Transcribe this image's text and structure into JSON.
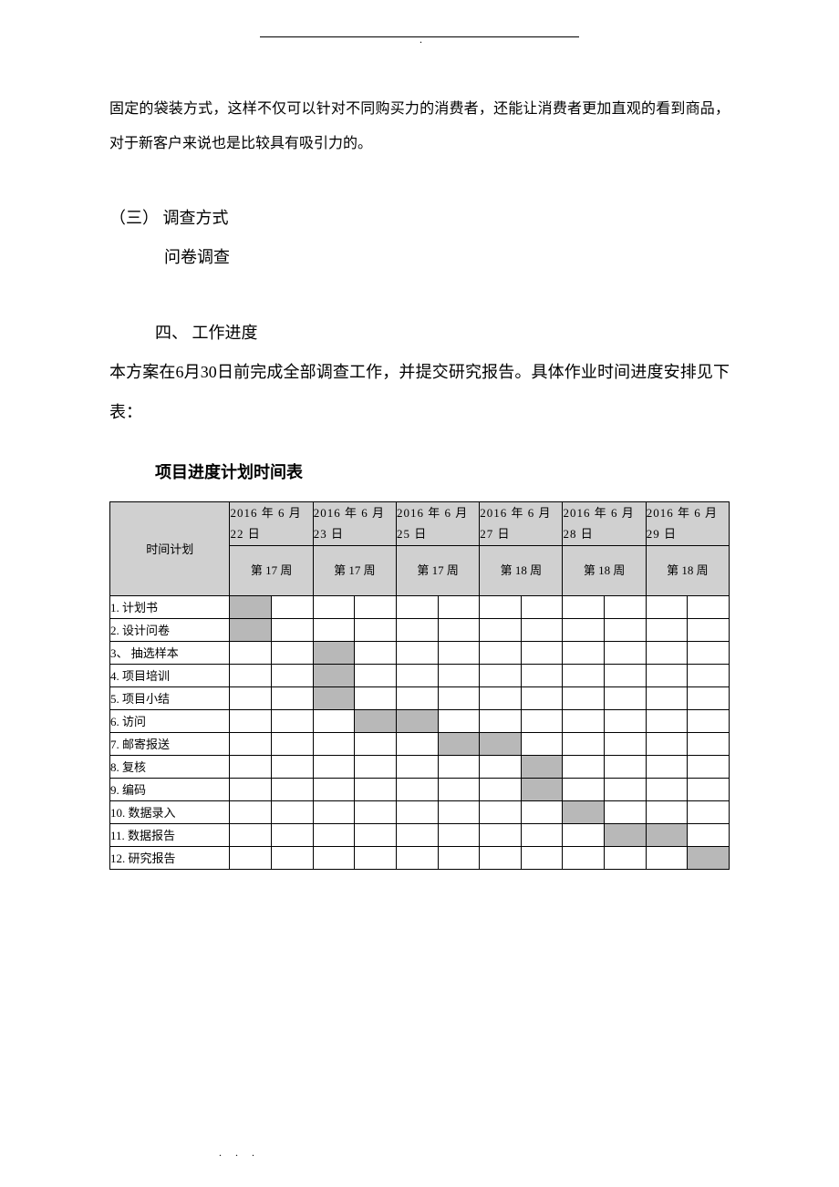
{
  "topDot": ".",
  "bodyText": "固定的袋装方式，这样不仅可以针对不同购买力的消费者，还能让消费者更加直观的看到商品，对于新客户来说也是比较具有吸引力的。",
  "sectionHead": "（三）  调查方式",
  "sectionSub": "问卷调查",
  "section4Head": "四、  工作进度",
  "section4Body": "本方案在6月30日前完成全部调查工作，并提交研究报告。具体作业时间进度安排见下表：",
  "tableTitle": "项目进度计划时间表",
  "planLabel": "时间计划",
  "dates": [
    "2016 年 6 月 22 日",
    "2016 年 6 月 23 日",
    "2016 年 6 月 25 日",
    "2016 年 6 月 27 日",
    "2016 年 6 月 28 日",
    "2016 年 6 月 29 日"
  ],
  "weeks": [
    "第 17 周",
    "第 17 周",
    "第 17 周",
    "第 18 周",
    "第 18 周",
    "第 18 周"
  ],
  "tasks": [
    {
      "label": "1.  计划书",
      "fill": [
        1,
        0,
        0,
        0,
        0,
        0,
        0,
        0,
        0,
        0,
        0,
        0
      ]
    },
    {
      "label": "2.  设计问卷",
      "fill": [
        1,
        0,
        0,
        0,
        0,
        0,
        0,
        0,
        0,
        0,
        0,
        0
      ]
    },
    {
      "label": "3、 抽选样本",
      "fill": [
        0,
        0,
        1,
        0,
        0,
        0,
        0,
        0,
        0,
        0,
        0,
        0
      ]
    },
    {
      "label": "4.  项目培训",
      "fill": [
        0,
        0,
        1,
        0,
        0,
        0,
        0,
        0,
        0,
        0,
        0,
        0
      ]
    },
    {
      "label": "5.  项目小结",
      "fill": [
        0,
        0,
        1,
        0,
        0,
        0,
        0,
        0,
        0,
        0,
        0,
        0
      ]
    },
    {
      "label": "6.  访问",
      "fill": [
        0,
        0,
        0,
        1,
        1,
        0,
        0,
        0,
        0,
        0,
        0,
        0
      ]
    },
    {
      "label": "7.  邮寄报送",
      "fill": [
        0,
        0,
        0,
        0,
        0,
        1,
        1,
        0,
        0,
        0,
        0,
        0
      ]
    },
    {
      "label": "8.  复核",
      "fill": [
        0,
        0,
        0,
        0,
        0,
        0,
        0,
        1,
        0,
        0,
        0,
        0
      ]
    },
    {
      "label": "9.  编码",
      "fill": [
        0,
        0,
        0,
        0,
        0,
        0,
        0,
        1,
        0,
        0,
        0,
        0
      ]
    },
    {
      "label": "10. 数据录入",
      "fill": [
        0,
        0,
        0,
        0,
        0,
        0,
        0,
        0,
        1,
        0,
        0,
        0
      ]
    },
    {
      "label": "11. 数据报告",
      "fill": [
        0,
        0,
        0,
        0,
        0,
        0,
        0,
        0,
        0,
        1,
        1,
        0
      ]
    },
    {
      "label": "12. 研究报告",
      "fill": [
        0,
        0,
        0,
        0,
        0,
        0,
        0,
        0,
        0,
        0,
        0,
        1
      ]
    }
  ],
  "footerDots": ". . .",
  "colors": {
    "headerFill": "#d0d0d0",
    "cellFill": "#b8b8b8",
    "border": "#000000",
    "background": "#ffffff",
    "text": "#000000"
  }
}
